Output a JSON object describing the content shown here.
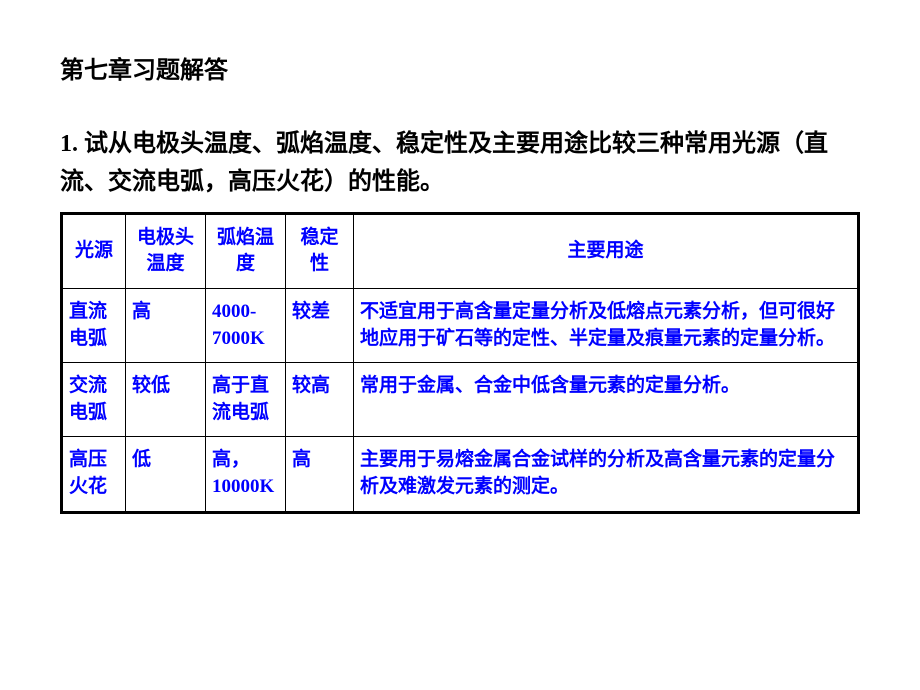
{
  "chapter_title": "第七章习题解答",
  "question": "1. 试从电极头温度、弧焰温度、稳定性及主要用途比较三种常用光源（直流、交流电弧，高压火花）的性能。",
  "table": {
    "headers": [
      "光源",
      "电极头温度",
      "弧焰温度",
      "稳定性",
      "主要用途"
    ],
    "rows": [
      {
        "source": "直流电弧",
        "electrode_temp": "高",
        "flame_temp": "4000-7000K",
        "stability": "较差",
        "usage": "不适宜用于高含量定量分析及低熔点元素分析，但可很好地应用于矿石等的定性、半定量及痕量元素的定量分析。"
      },
      {
        "source": "交流电弧",
        "electrode_temp": "较低",
        "flame_temp": "高于直流电弧",
        "stability": "较高",
        "usage": "常用于金属、合金中低含量元素的定量分析。"
      },
      {
        "source": "高压火花",
        "electrode_temp": "低",
        "flame_temp": "高，10000K",
        "stability": "高",
        "usage": "主要用于易熔金属合金试样的分析及高含量元素的定量分析及难激发元素的测定。"
      }
    ]
  },
  "colors": {
    "text_black": "#000000",
    "text_blue": "#0000ff",
    "background": "#ffffff",
    "border": "#000000"
  }
}
